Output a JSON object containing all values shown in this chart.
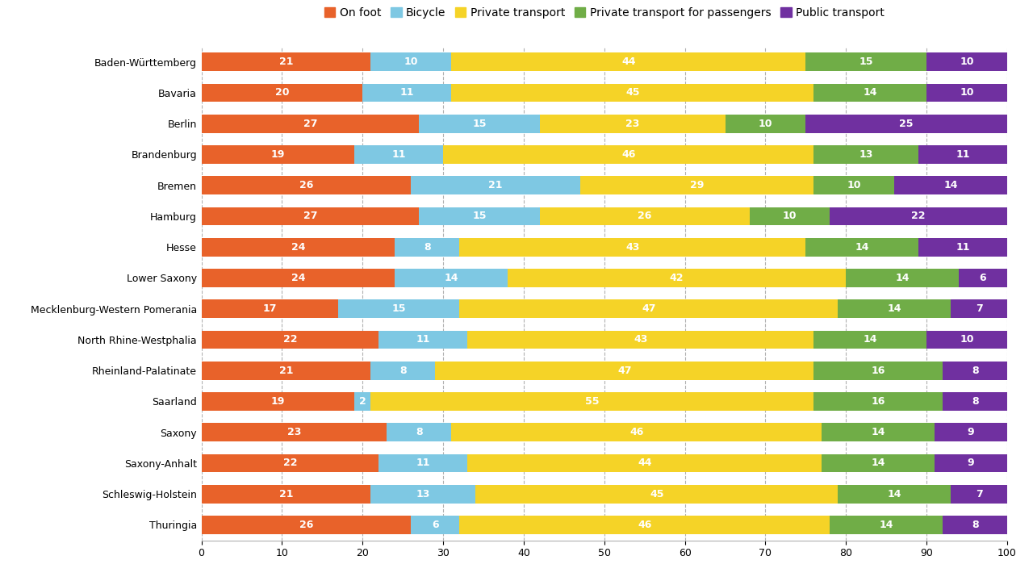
{
  "states": [
    "Baden-Württemberg",
    "Bavaria",
    "Berlin",
    "Brandenburg",
    "Bremen",
    "Hamburg",
    "Hesse",
    "Lower Saxony",
    "Mecklenburg-Western Pomerania",
    "North Rhine-Westphalia",
    "Rheinland-Palatinate",
    "Saarland",
    "Saxony",
    "Saxony-Anhalt",
    "Schleswig-Holstein",
    "Thuringia"
  ],
  "on_foot": [
    21,
    20,
    27,
    19,
    26,
    27,
    24,
    24,
    17,
    22,
    21,
    19,
    23,
    22,
    21,
    26
  ],
  "bicycle": [
    10,
    11,
    15,
    11,
    21,
    15,
    8,
    14,
    15,
    11,
    8,
    2,
    8,
    11,
    13,
    6
  ],
  "private": [
    44,
    45,
    23,
    46,
    29,
    26,
    43,
    42,
    47,
    43,
    47,
    55,
    46,
    44,
    45,
    46
  ],
  "private_pass": [
    15,
    14,
    10,
    13,
    10,
    10,
    14,
    14,
    14,
    14,
    16,
    16,
    14,
    14,
    14,
    14
  ],
  "public": [
    10,
    10,
    25,
    11,
    14,
    22,
    11,
    6,
    7,
    10,
    8,
    8,
    9,
    9,
    7,
    8
  ],
  "colors": {
    "on_foot": "#e8622a",
    "bicycle": "#7ec8e3",
    "private": "#f5d327",
    "private_pass": "#70ad47",
    "public": "#7030a0"
  },
  "legend_labels": [
    "On foot",
    "Bicycle",
    "Private transport",
    "Private transport for passengers",
    "Public transport"
  ],
  "xlim": [
    0,
    100
  ],
  "xticks": [
    0,
    10,
    20,
    30,
    40,
    50,
    60,
    70,
    80,
    90,
    100
  ],
  "background_color": "#ffffff",
  "grid_color": "#b0b0b0",
  "bar_height": 0.6,
  "label_fontsize": 9,
  "tick_fontsize": 9,
  "legend_fontsize": 10
}
